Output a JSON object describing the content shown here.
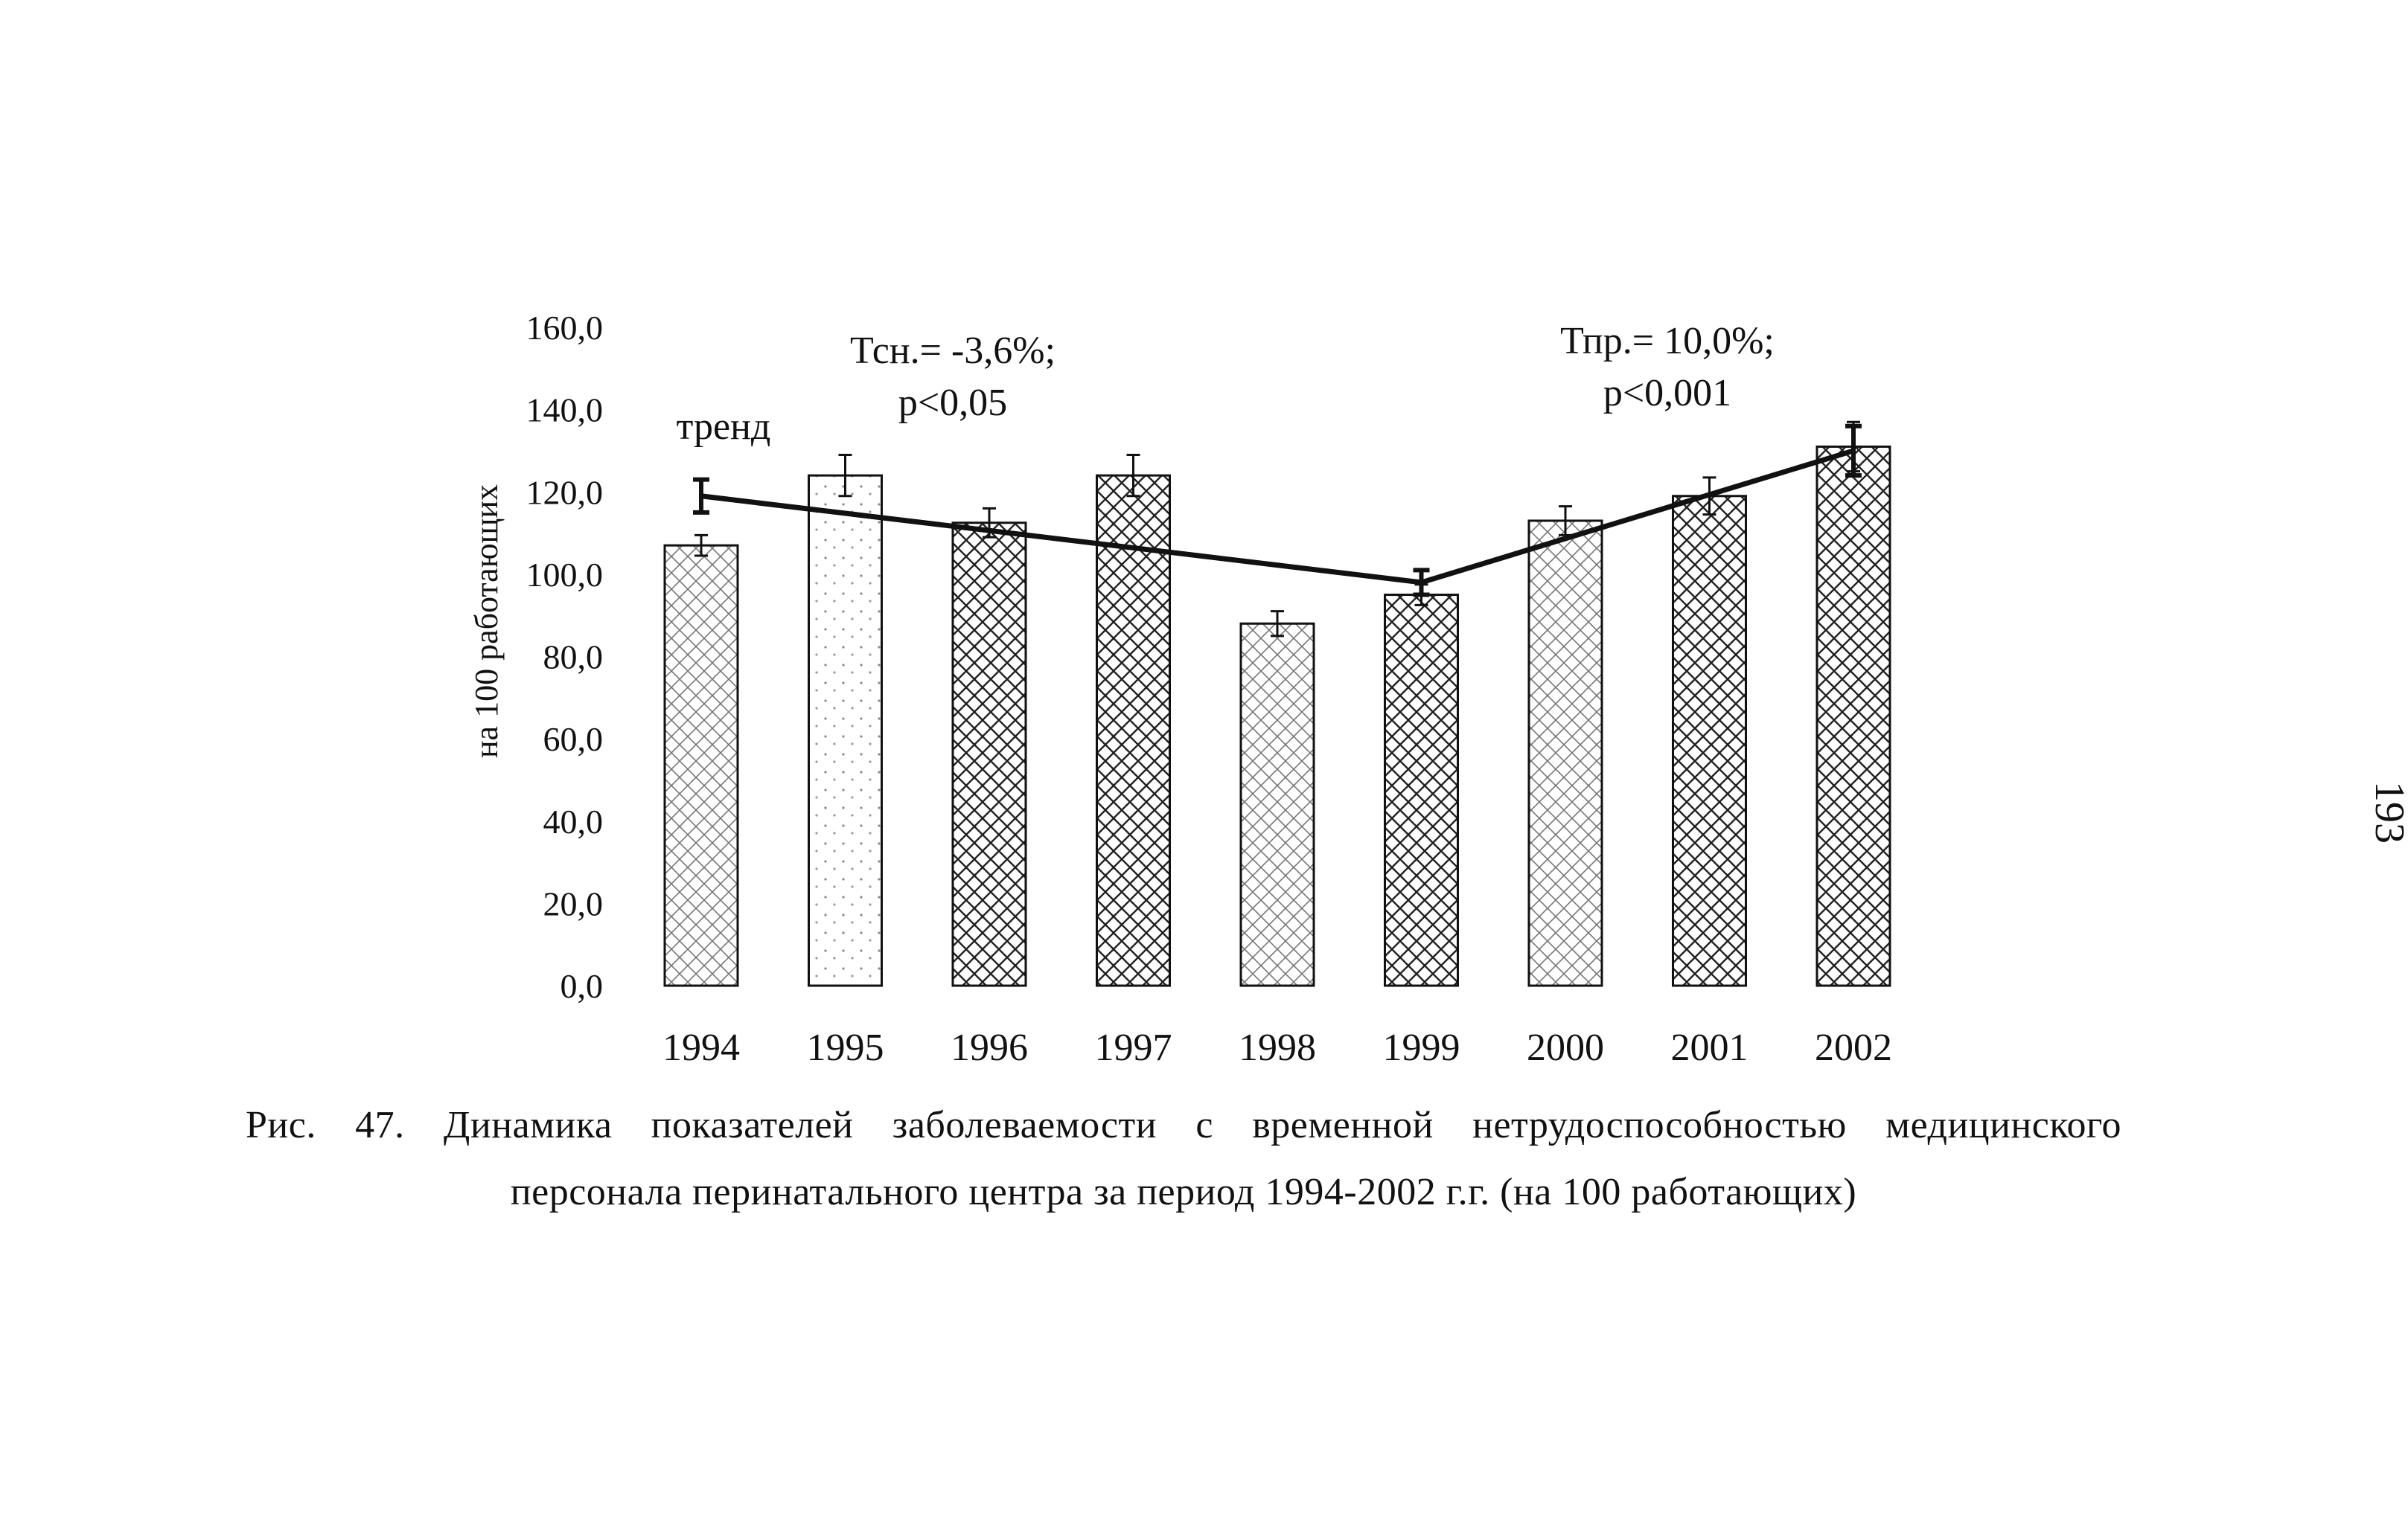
{
  "chart_data": {
    "type": "bar",
    "categories": [
      "1994",
      "1995",
      "1996",
      "1997",
      "1998",
      "1999",
      "2000",
      "2001",
      "2002"
    ],
    "series": [
      {
        "values": [
          107.0,
          124.0,
          112.5,
          124.0,
          88.0,
          95.0,
          113.0,
          119.0,
          131.0
        ],
        "error": [
          2.5,
          5.0,
          3.5,
          5.0,
          3.0,
          2.5,
          3.5,
          4.5,
          6.0
        ]
      }
    ],
    "trend": {
      "name": "тренд",
      "points": [
        {
          "x": "1994",
          "y": 119.0,
          "error": 4.0
        },
        {
          "x": "1999",
          "y": 98.0,
          "error": 3.0
        },
        {
          "x": "2002",
          "y": 130.0,
          "error": 6.0
        }
      ]
    },
    "yticks": [
      "0,0",
      "20,0",
      "40,0",
      "60,0",
      "80,0",
      "100,0",
      "120,0",
      "140,0",
      "160,0"
    ],
    "ylabel": "на 100 работающих",
    "ylim": [
      0,
      160
    ],
    "annotations": [
      {
        "line1": "Тсн.= -3,6%;",
        "line2": "p<0,05"
      },
      {
        "line1": "Тпр.= 10,0%;",
        "line2": "p<0,001"
      }
    ],
    "grid": false
  },
  "caption": {
    "line1": "Рис. 47. Динамика показателей заболеваемости с временной нетрудоспособностью медицинского",
    "line2": "персонала перинатального центра за период 1994-2002 г.г. (на 100 работающих)"
  },
  "page_number": "193"
}
